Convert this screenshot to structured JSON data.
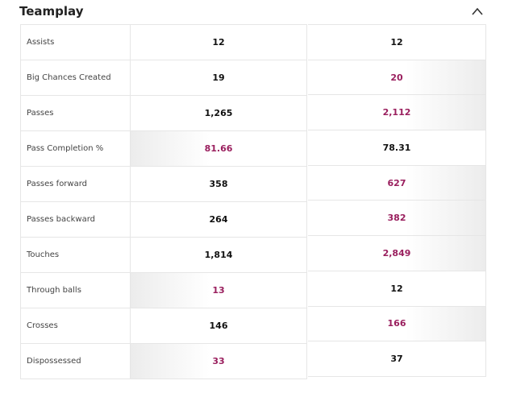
{
  "section": {
    "title": "Teamplay",
    "collapse_icon": "chevron-up-icon"
  },
  "colors": {
    "highlight": "#9a1f5e"
  },
  "rows": [
    {
      "label": "Assists",
      "left": "12",
      "right": "12",
      "leader": "none"
    },
    {
      "label": "Big Chances Created",
      "left": "19",
      "right": "20",
      "leader": "right"
    },
    {
      "label": "Passes",
      "left": "1,265",
      "right": "2,112",
      "leader": "right"
    },
    {
      "label": "Pass Completion %",
      "left": "81.66",
      "right": "78.31",
      "leader": "left"
    },
    {
      "label": "Passes forward",
      "left": "358",
      "right": "627",
      "leader": "right"
    },
    {
      "label": "Passes backward",
      "left": "264",
      "right": "382",
      "leader": "right"
    },
    {
      "label": "Touches",
      "left": "1,814",
      "right": "2,849",
      "leader": "right"
    },
    {
      "label": "Through balls",
      "left": "13",
      "right": "12",
      "leader": "left"
    },
    {
      "label": "Crosses",
      "left": "146",
      "right": "166",
      "leader": "right"
    },
    {
      "label": "Dispossessed",
      "left": "33",
      "right": "37",
      "leader": "left"
    }
  ]
}
